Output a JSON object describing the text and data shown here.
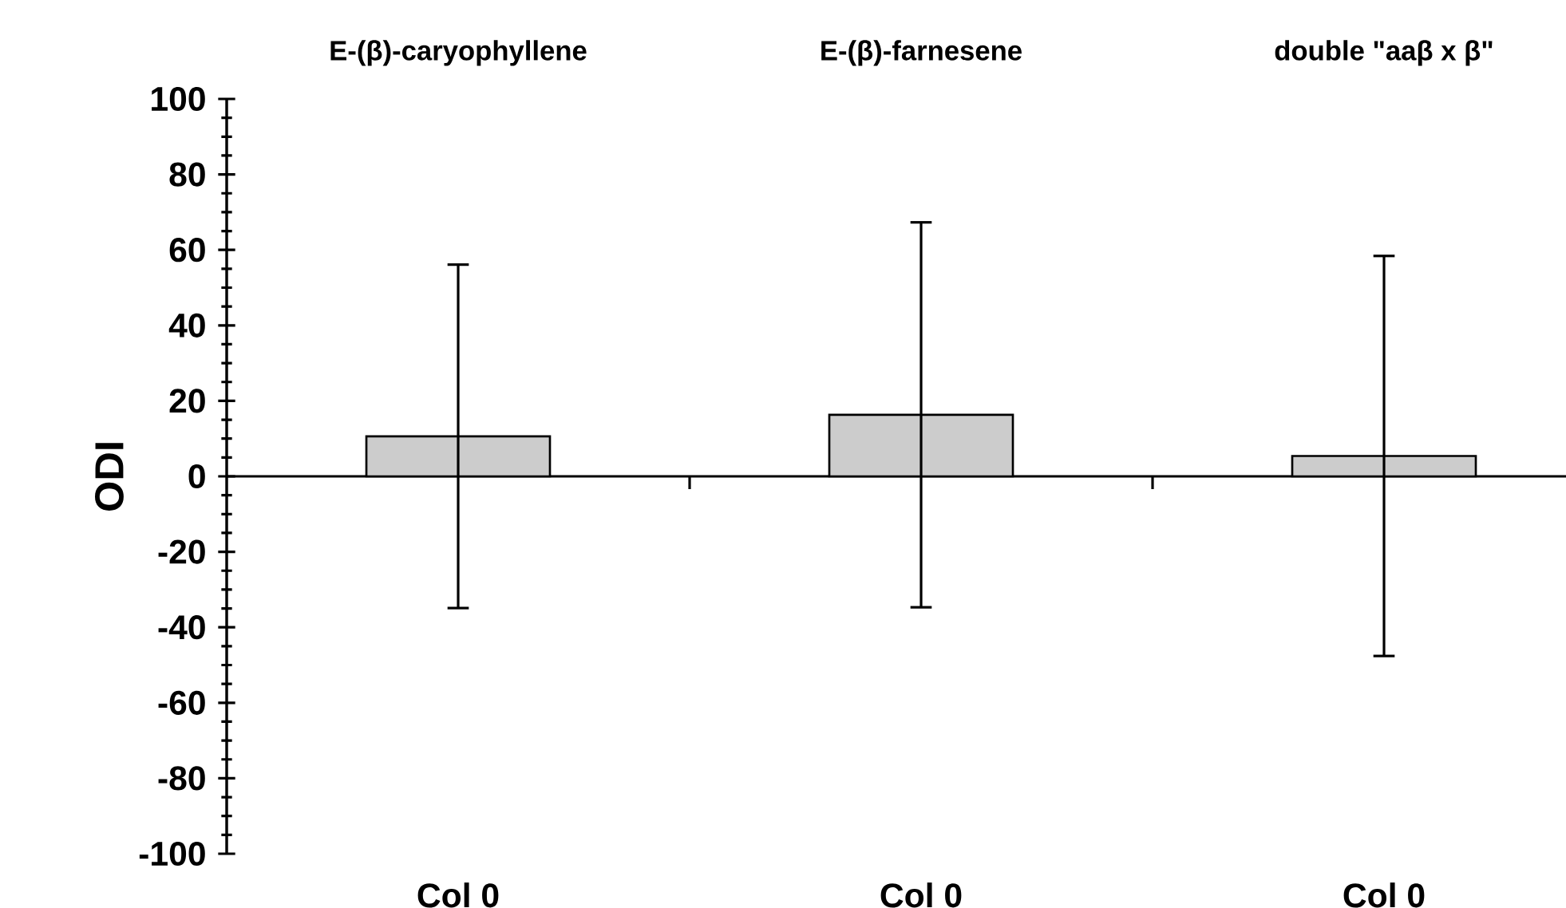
{
  "chart_data": {
    "type": "bar",
    "ylabel": "ODI",
    "categories": [
      "Col 0",
      "Col 0",
      "Col 0"
    ],
    "values": [
      10.6,
      16.3,
      5.4
    ],
    "errors": [
      45.5,
      51,
      53
    ],
    "color": "#cccccc",
    "ylim": [
      -100,
      100
    ],
    "yticks": [
      -100,
      -80,
      -60,
      -40,
      -20,
      0,
      20,
      40,
      60,
      80,
      100
    ],
    "annotations": [
      "E-(β)-caryophyllene",
      "E-(β)-farnesene",
      "double \"aaβ x β\""
    ]
  }
}
